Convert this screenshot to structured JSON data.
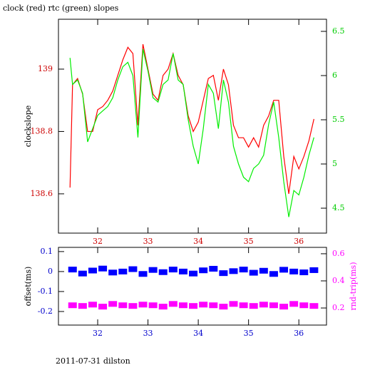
{
  "chart_data": [
    {
      "type": "line",
      "title": "clock (red) rtc (green) slopes",
      "ylabel": "clockslope",
      "x": [
        31.45,
        31.5,
        31.6,
        31.7,
        31.8,
        31.9,
        32.0,
        32.1,
        32.2,
        32.3,
        32.4,
        32.5,
        32.6,
        32.7,
        32.8,
        32.9,
        33.0,
        33.1,
        33.2,
        33.3,
        33.4,
        33.5,
        33.6,
        33.7,
        33.8,
        33.9,
        34.0,
        34.1,
        34.2,
        34.3,
        34.4,
        34.5,
        34.6,
        34.7,
        34.8,
        34.9,
        35.0,
        35.1,
        35.2,
        35.3,
        35.4,
        35.5,
        35.6,
        35.7,
        35.8,
        35.9,
        36.0,
        36.1,
        36.2,
        36.3
      ],
      "series": [
        {
          "color": "#ff0000",
          "values": [
            138.62,
            138.95,
            138.97,
            138.92,
            138.8,
            138.8,
            138.87,
            138.88,
            138.9,
            138.93,
            138.98,
            139.03,
            139.07,
            139.05,
            138.82,
            139.08,
            139.0,
            138.92,
            138.9,
            138.98,
            139.0,
            139.05,
            138.98,
            138.95,
            138.85,
            138.8,
            138.83,
            138.9,
            138.97,
            138.98,
            138.9,
            139.0,
            138.95,
            138.82,
            138.78,
            138.78,
            138.75,
            138.78,
            138.75,
            138.82,
            138.85,
            138.9,
            138.9,
            138.72,
            138.6,
            138.72,
            138.68,
            138.72,
            138.77,
            138.84
          ]
        },
        {
          "color": "#00ee00",
          "axis": "y2",
          "values": [
            6.2,
            5.9,
            5.95,
            5.8,
            5.25,
            5.4,
            5.55,
            5.6,
            5.65,
            5.75,
            5.95,
            6.1,
            6.15,
            6.0,
            5.3,
            6.3,
            6.05,
            5.75,
            5.7,
            5.9,
            5.95,
            6.25,
            5.95,
            5.9,
            5.5,
            5.2,
            5.0,
            5.4,
            5.9,
            5.8,
            5.4,
            5.95,
            5.7,
            5.2,
            5.0,
            4.85,
            4.8,
            4.95,
            5.0,
            5.1,
            5.45,
            5.7,
            5.3,
            4.8,
            4.4,
            4.7,
            4.65,
            4.85,
            5.1,
            5.3
          ]
        }
      ],
      "xlim": [
        31.22,
        36.55
      ],
      "xticks": [
        32,
        33,
        34,
        35,
        36
      ],
      "ylim": [
        138.474,
        139.16
      ],
      "yticks": [
        138.6,
        138.8,
        139
      ],
      "y2lim": [
        4.218,
        6.637
      ],
      "y2ticks": [
        4.5,
        5,
        5.5,
        6,
        6.5
      ],
      "ycolor": "#cc0000",
      "y2color": "#00cc00",
      "xcolor": "#cc0000"
    },
    {
      "type": "scatter",
      "ylabel": "offset(ms)",
      "y2label": "rnd-trip(ms)",
      "annotation": "2011-07-31 dilston",
      "x": [
        31.5,
        31.7,
        31.9,
        32.1,
        32.3,
        32.5,
        32.7,
        32.9,
        33.1,
        33.3,
        33.5,
        33.7,
        33.9,
        34.1,
        34.3,
        34.5,
        34.7,
        34.9,
        35.1,
        35.3,
        35.5,
        35.7,
        35.9,
        36.1,
        36.3
      ],
      "series": [
        {
          "color": "#0000ff",
          "values": [
            0.01,
            -0.01,
            0.005,
            0.015,
            -0.005,
            0.0,
            0.012,
            -0.012,
            0.008,
            -0.003,
            0.01,
            0.0,
            -0.01,
            0.006,
            0.014,
            -0.008,
            0.002,
            0.01,
            -0.006,
            0.004,
            -0.012,
            0.009,
            0.0,
            -0.004,
            0.007
          ]
        },
        {
          "color": "#ff00ff",
          "axis": "y2",
          "values": [
            0.22,
            0.215,
            0.225,
            0.21,
            0.23,
            0.22,
            0.215,
            0.225,
            0.22,
            0.21,
            0.23,
            0.22,
            0.215,
            0.225,
            0.22,
            0.21,
            0.23,
            0.22,
            0.215,
            0.225,
            0.22,
            0.21,
            0.23,
            0.22,
            0.215
          ]
        }
      ],
      "xlim": [
        31.22,
        36.55
      ],
      "xticks": [
        32,
        33,
        34,
        35,
        36
      ],
      "ylim": [
        -0.268,
        0.121
      ],
      "yticks": [
        -0.2,
        -0.1,
        0,
        0.1
      ],
      "y2lim": [
        0.074,
        0.647
      ],
      "y2ticks": [
        0.2,
        0.4,
        0.6
      ],
      "ycolor": "#0000cc",
      "y2color": "#ff00ff",
      "xcolor": "#0000cc"
    }
  ]
}
